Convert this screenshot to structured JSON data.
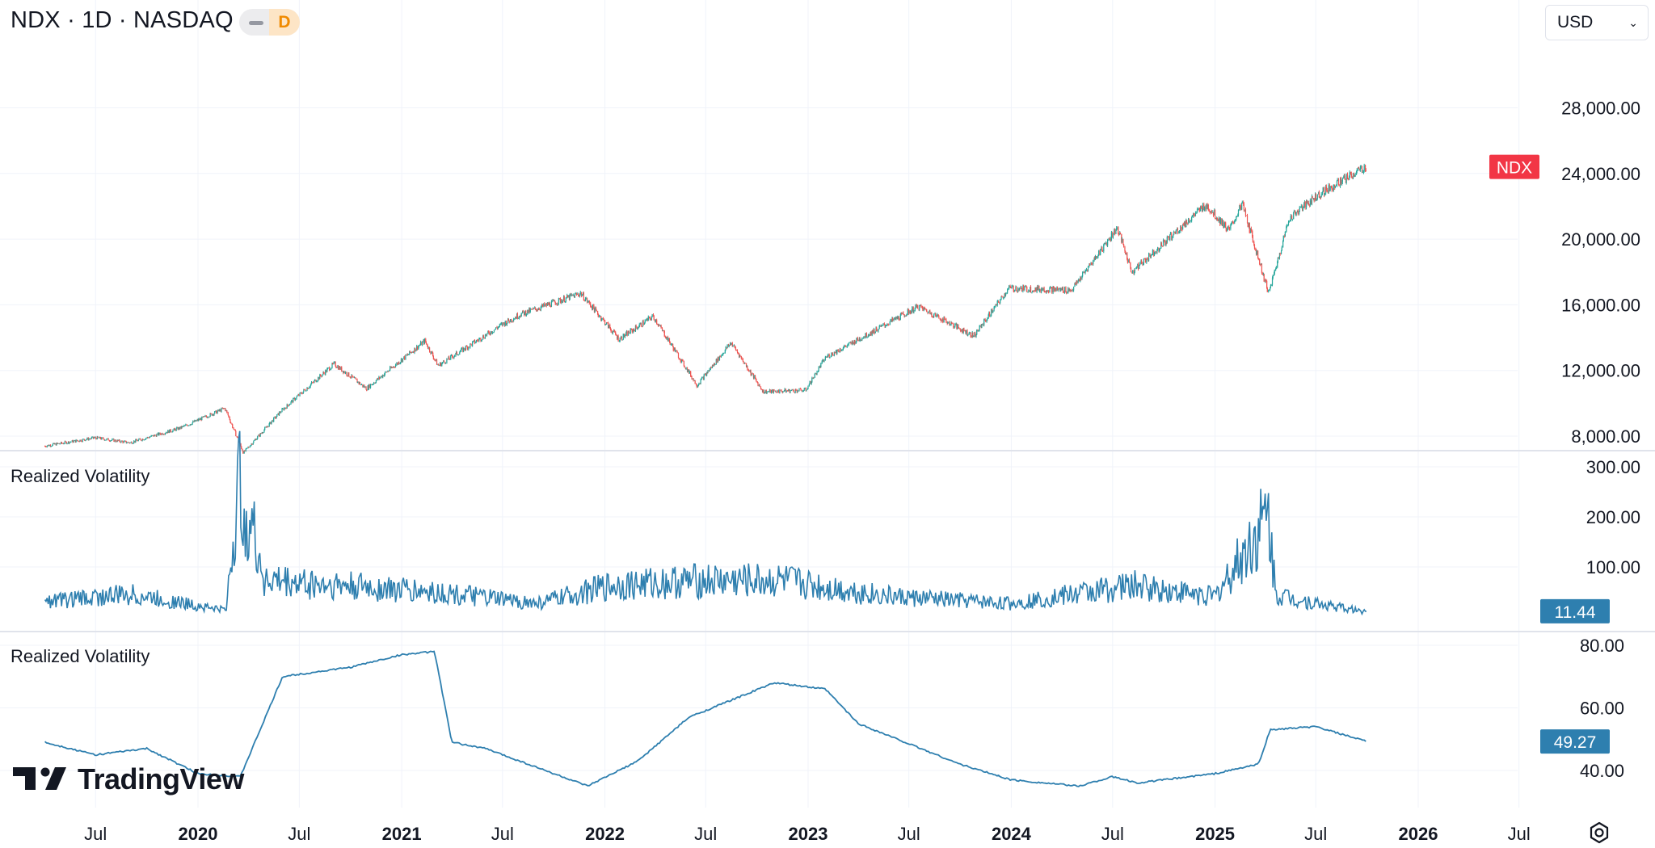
{
  "header": {
    "symbol_title": "NDX · 1D · NASDAQ",
    "status_letter": "D",
    "currency": "USD"
  },
  "colors": {
    "up": "#26a69a",
    "down": "#ef5350",
    "price_tag": "#f23645",
    "indicator_line": "#2e7faf",
    "indicator_tag": "#2e7faf",
    "grid": "#f0f3fa"
  },
  "panes": {
    "price_tag_label": "NDX",
    "vol1_label": "Realized Volatility",
    "vol1_value": "11.44",
    "vol2_label": "Realized Volatility",
    "vol2_value": "49.27"
  },
  "axes": {
    "price_ticks": [
      "28,000.00",
      "24,000.00",
      "20,000.00",
      "16,000.00",
      "12,000.00",
      "8,000.00"
    ],
    "vol1_ticks": [
      "300.00",
      "200.00",
      "100.00"
    ],
    "vol2_ticks": [
      "80.00",
      "60.00",
      "40.00"
    ],
    "time_ticks": [
      {
        "label": "Jul",
        "bold": false
      },
      {
        "label": "2020",
        "bold": true
      },
      {
        "label": "Jul",
        "bold": false
      },
      {
        "label": "2021",
        "bold": true
      },
      {
        "label": "Jul",
        "bold": false
      },
      {
        "label": "2022",
        "bold": true
      },
      {
        "label": "Jul",
        "bold": false
      },
      {
        "label": "2023",
        "bold": true
      },
      {
        "label": "Jul",
        "bold": false
      },
      {
        "label": "2024",
        "bold": true
      },
      {
        "label": "Jul",
        "bold": false
      },
      {
        "label": "2025",
        "bold": true
      },
      {
        "label": "Jul",
        "bold": false
      },
      {
        "label": "2026",
        "bold": true
      },
      {
        "label": "Jul",
        "bold": false
      }
    ]
  },
  "branding": {
    "logo_text": "TradingView"
  },
  "chart_data": [
    {
      "type": "line",
      "subtype": "candlestick",
      "title": "NDX · 1D · NASDAQ",
      "xlabel": "",
      "ylabel": "",
      "ylim": [
        6400,
        30000
      ],
      "xlim": [
        "2019-04-01",
        "2026-09-01"
      ],
      "x": [
        "2019-04-01",
        "2019-07-01",
        "2019-09-01",
        "2019-12-01",
        "2020-02-19",
        "2020-03-23",
        "2020-06-01",
        "2020-09-02",
        "2020-10-30",
        "2021-02-12",
        "2021-03-08",
        "2021-07-01",
        "2021-08-01",
        "2021-11-19",
        "2022-01-27",
        "2022-03-29",
        "2022-06-16",
        "2022-08-16",
        "2022-10-13",
        "2022-12-28",
        "2023-02-02",
        "2023-07-19",
        "2023-10-26",
        "2023-12-28",
        "2024-04-19",
        "2024-07-10",
        "2024-08-05",
        "2024-12-16",
        "2025-01-27",
        "2025-02-19",
        "2025-04-08",
        "2025-05-15",
        "2025-07-10",
        "2025-09-30"
      ],
      "values": [
        7400,
        7900,
        7600,
        8500,
        9700,
        6994,
        9600,
        12400,
        10900,
        13800,
        12300,
        14800,
        15400,
        16700,
        13900,
        15300,
        11100,
        13700,
        10700,
        10800,
        12800,
        15900,
        14100,
        17000,
        16900,
        20700,
        18000,
        22100,
        20500,
        22200,
        16700,
        21300,
        22800,
        24400
      ]
    },
    {
      "type": "line",
      "title": "Realized Volatility",
      "ylim": [
        0,
        310
      ],
      "x": [
        "2019-04-01",
        "2019-09-01",
        "2020-02-20",
        "2020-03-16",
        "2020-05-01",
        "2020-09-01",
        "2021-03-01",
        "2021-09-01",
        "2022-01-15",
        "2022-06-15",
        "2022-11-15",
        "2023-06-01",
        "2024-01-01",
        "2024-08-05",
        "2025-01-01",
        "2025-04-07",
        "2025-04-20",
        "2025-07-01",
        "2025-09-30"
      ],
      "values": [
        35,
        50,
        15,
        290,
        80,
        70,
        55,
        30,
        70,
        80,
        80,
        45,
        30,
        70,
        45,
        220,
        50,
        30,
        11.44
      ]
    },
    {
      "type": "line",
      "title": "Realized Volatility",
      "ylim": [
        35,
        82
      ],
      "x": [
        "2019-04-01",
        "2019-07-01",
        "2019-10-01",
        "2020-01-01",
        "2020-03-17",
        "2020-06-01",
        "2020-10-01",
        "2021-01-01",
        "2021-03-01",
        "2021-04-01",
        "2021-06-01",
        "2021-12-01",
        "2022-03-01",
        "2022-06-01",
        "2022-11-01",
        "2023-02-01",
        "2023-04-01",
        "2023-10-01",
        "2024-01-01",
        "2024-05-01",
        "2024-07-01",
        "2024-08-15",
        "2025-01-01",
        "2025-03-20",
        "2025-04-10",
        "2025-07-01",
        "2025-09-30"
      ],
      "values": [
        49,
        45,
        47,
        39,
        38,
        70,
        73,
        77,
        78,
        49,
        47,
        35,
        43,
        57,
        68,
        66,
        55,
        42,
        37,
        35,
        38,
        36,
        39,
        42,
        53,
        54,
        49.27
      ]
    }
  ]
}
